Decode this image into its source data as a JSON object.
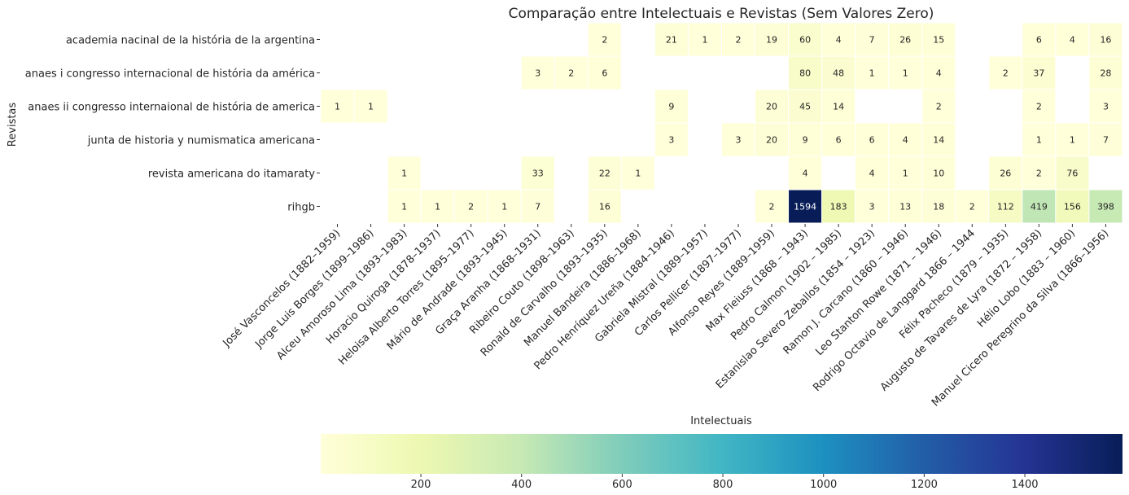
{
  "chart_data": {
    "type": "heatmap",
    "title": "Comparação entre Intelectuais e Revistas (Sem Valores Zero)",
    "ylabel": "Revistas",
    "colorbar_label": "Intelectuais",
    "colormap": "YlGnBu",
    "color_range": [
      1,
      1594
    ],
    "colorbar_ticks": [
      200,
      400,
      600,
      800,
      1000,
      1200,
      1400
    ],
    "rows": [
      "academia nacinal de la história de la argentina",
      "anaes i congresso internacional de história da américa",
      "anaes ii congresso internaional de história de america",
      "junta de historia y numismatica americana",
      "revista americana do itamaraty",
      "rihgb"
    ],
    "columns": [
      "José Vasconcelos (1882–1959)",
      "Jorge Luis Borges (1899–1986)",
      "Alceu Amoroso Lima (1893–1983)",
      "Horacio Quiroga (1878–1937)",
      "Heloisa Alberto Torres (1895–1977)",
      "Mário de Andrade (1893–1945)",
      "Graça Aranha (1868–1931)",
      "Ribeiro Couto (1898–1963)",
      "Ronald de Carvalho (1893–1935)",
      "Manuel Bandeira (1886–1968)",
      "Pedro Henríquez Ureña (1884–1946)",
      "Gabriela Mistral (1889–1957)",
      "Carlos Pellicer (1897–1977)",
      "Alfonso Reyes (1889–1959)",
      "Max Fleiuss (1868 – 1943)",
      "Pedro Calmon (1902 – 1985)",
      "Estanislao Severo Zeballos (1854 – 1923)",
      "Ramon J. Carcano (1860 – 1946)",
      "Leo Stanton Rowe (1871 – 1946)",
      "Rodrigo Octavio de Langgard 1866 – 1944",
      "Félix Pacheco (1879 – 1935)",
      "Augusto de Tavares de Lyra (1872 – 1958)",
      "Hélio Lobo (1883 – 1960)",
      "Manuel Cicero Peregrino da Silva (1866–1956)"
    ],
    "values": [
      [
        null,
        null,
        null,
        null,
        null,
        null,
        null,
        null,
        2,
        null,
        21,
        1,
        2,
        19,
        60,
        4,
        7,
        26,
        15,
        null,
        null,
        6,
        4,
        16
      ],
      [
        null,
        null,
        null,
        null,
        null,
        null,
        3,
        2,
        6,
        null,
        null,
        null,
        null,
        null,
        80,
        48,
        1,
        1,
        4,
        null,
        2,
        37,
        null,
        28
      ],
      [
        1,
        1,
        null,
        null,
        null,
        null,
        null,
        null,
        null,
        null,
        9,
        null,
        null,
        20,
        45,
        14,
        null,
        null,
        2,
        null,
        null,
        2,
        null,
        3
      ],
      [
        null,
        null,
        null,
        null,
        null,
        null,
        null,
        null,
        null,
        null,
        3,
        null,
        3,
        20,
        9,
        6,
        6,
        4,
        14,
        null,
        null,
        1,
        1,
        7
      ],
      [
        null,
        null,
        1,
        null,
        null,
        null,
        33,
        null,
        22,
        1,
        null,
        null,
        null,
        null,
        4,
        null,
        4,
        1,
        10,
        null,
        26,
        2,
        76,
        null
      ],
      [
        null,
        null,
        1,
        1,
        2,
        1,
        7,
        null,
        16,
        null,
        null,
        null,
        null,
        2,
        1594,
        183,
        3,
        13,
        18,
        2,
        112,
        419,
        156,
        398
      ]
    ]
  }
}
